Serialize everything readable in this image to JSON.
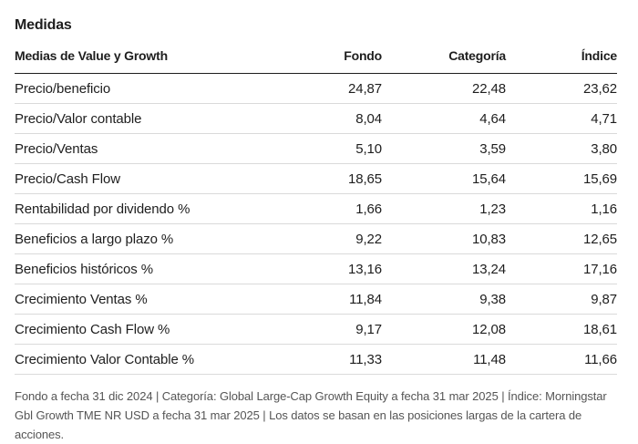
{
  "section": {
    "title": "Medidas"
  },
  "table": {
    "headers": {
      "label": "Medias de Value y Growth",
      "fondo": "Fondo",
      "categoria": "Categoría",
      "indice": "Índice"
    },
    "rows": [
      {
        "label": "Precio/beneficio",
        "fondo": "24,87",
        "categoria": "22,48",
        "indice": "23,62"
      },
      {
        "label": "Precio/Valor contable",
        "fondo": "8,04",
        "categoria": "4,64",
        "indice": "4,71"
      },
      {
        "label": "Precio/Ventas",
        "fondo": "5,10",
        "categoria": "3,59",
        "indice": "3,80"
      },
      {
        "label": "Precio/Cash Flow",
        "fondo": "18,65",
        "categoria": "15,64",
        "indice": "15,69"
      },
      {
        "label": "Rentabilidad por dividendo %",
        "fondo": "1,66",
        "categoria": "1,23",
        "indice": "1,16"
      },
      {
        "label": "Beneficios a largo plazo %",
        "fondo": "9,22",
        "categoria": "10,83",
        "indice": "12,65"
      },
      {
        "label": "Beneficios históricos %",
        "fondo": "13,16",
        "categoria": "13,24",
        "indice": "17,16"
      },
      {
        "label": "Crecimiento Ventas %",
        "fondo": "11,84",
        "categoria": "9,38",
        "indice": "9,87"
      },
      {
        "label": "Crecimiento Cash Flow %",
        "fondo": "9,17",
        "categoria": "12,08",
        "indice": "18,61"
      },
      {
        "label": "Crecimiento Valor Contable %",
        "fondo": "11,33",
        "categoria": "11,48",
        "indice": "11,66"
      }
    ]
  },
  "footnote": "Fondo a fecha 31 dic 2024 | Categoría: Global Large-Cap Growth Equity a fecha 31 mar 2025 | Índice: Morningstar Gbl Growth TME NR USD a fecha 31 mar 2025 | Los datos se basan en las posiciones largas de la cartera de acciones."
}
